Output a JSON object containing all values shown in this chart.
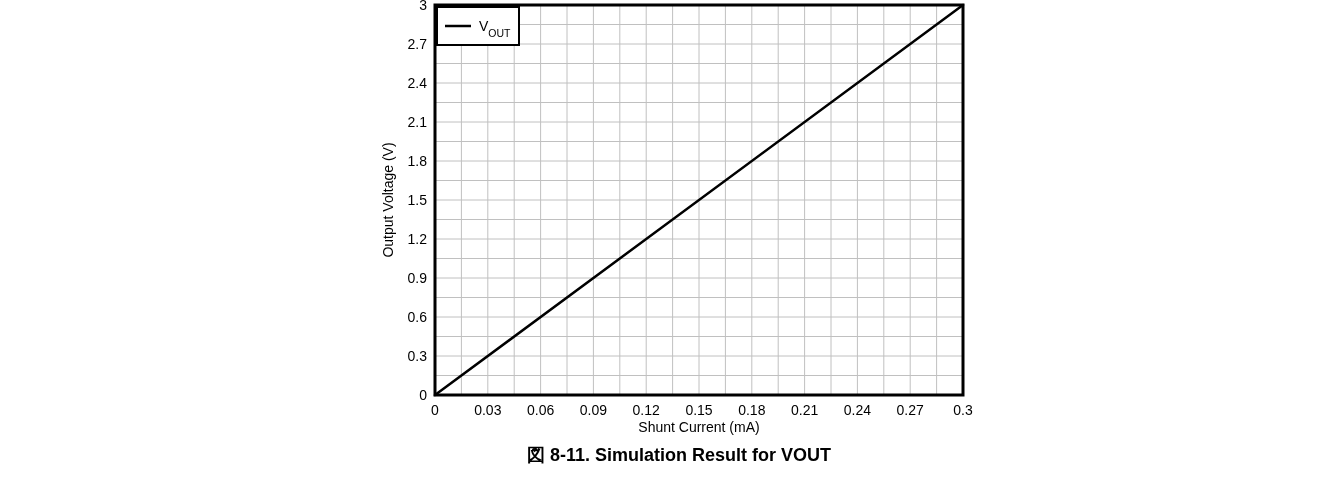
{
  "chart_data": {
    "type": "line",
    "title": "図 8-11. Simulation Result for VOUT",
    "xlabel": "Shunt Current (mA)",
    "ylabel": "Output Voltage (V)",
    "x": [
      0,
      0.3
    ],
    "series": [
      {
        "name": "V$_{OUT}$",
        "color": "#000000",
        "values": [
          0,
          3
        ]
      }
    ],
    "xlim": [
      0,
      0.3
    ],
    "ylim": [
      0,
      3
    ],
    "xticks": [
      0,
      {
        "value": 0.015,
        "label": null
      },
      0.03,
      {
        "value": 0.045,
        "label": null
      },
      0.06,
      {
        "value": 0.075,
        "label": null
      },
      0.09,
      {
        "value": 0.105,
        "label": null
      },
      0.12,
      {
        "value": 0.135,
        "label": null
      },
      0.15,
      {
        "value": 0.165,
        "label": null
      },
      0.18,
      {
        "value": 0.195,
        "label": null
      },
      0.21,
      {
        "value": 0.225,
        "label": null
      },
      0.24,
      {
        "value": 0.255,
        "label": null
      },
      0.27,
      {
        "value": 0.285,
        "label": null
      },
      0.3
    ],
    "yticks": [
      0,
      {
        "value": 0.15,
        "label": null
      },
      0.3,
      {
        "value": 0.45,
        "label": null
      },
      0.6,
      {
        "value": 0.75,
        "label": null
      },
      0.9,
      {
        "value": 1.05,
        "label": null
      },
      1.2,
      {
        "value": 1.35,
        "label": null
      },
      1.5,
      {
        "value": 1.65,
        "label": null
      },
      1.8,
      {
        "value": 1.95,
        "label": null
      },
      2.1,
      {
        "value": 2.25,
        "label": null
      },
      2.4,
      {
        "value": 2.55,
        "label": null
      },
      2.7,
      {
        "value": 2.85,
        "label": null
      },
      3
    ],
    "grid": true,
    "legend": "top left",
    "line_style": "solid"
  }
}
